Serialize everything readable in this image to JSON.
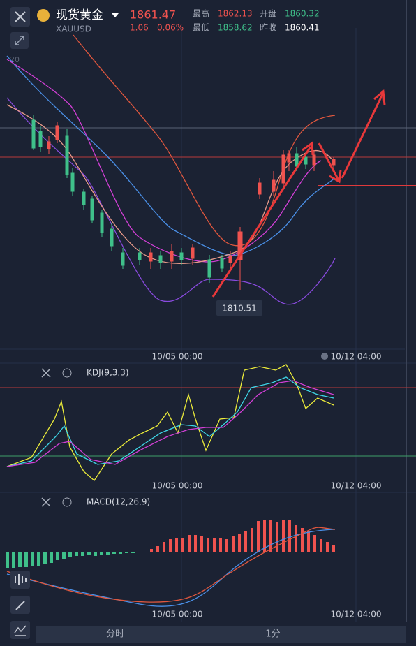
{
  "header": {
    "name": "现货黄金",
    "price": 1861.47,
    "symbol": "XAUUSD",
    "change": 1.06,
    "change_pct": "0.06%",
    "stats": [
      {
        "label": "最高",
        "value": 1862.13
      },
      {
        "label": "开盘",
        "value": 1860.32
      },
      {
        "label": "最低",
        "value": 1858.62
      },
      {
        "label": "昨收",
        "value": 1860.41
      }
    ]
  },
  "main_chart": {
    "axis_label": 20,
    "low_marker": 1810.51,
    "time_labels": [
      "10/05 00:00",
      "10/12 04:00"
    ]
  },
  "kdj_panel": {
    "title": "KDJ(9,3,3)",
    "time_labels": [
      "10/05 00:00",
      "10/12 04:00"
    ]
  },
  "macd_panel": {
    "title": "MACD(12,26,9)",
    "time_labels": [
      "10/05 00:00",
      "10/12 04:00"
    ]
  },
  "tabs": [
    "分时",
    "1分"
  ]
}
